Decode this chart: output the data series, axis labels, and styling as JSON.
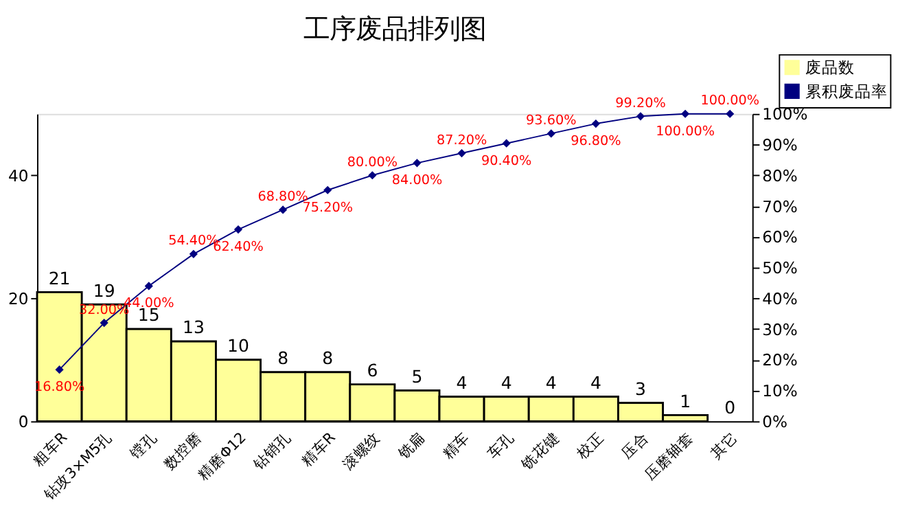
{
  "chart_data": {
    "type": "bar",
    "title": "工序废品排列图",
    "categories": [
      "粗车R",
      "钻攻3×M5孔",
      "镗孔",
      "数控磨",
      "精磨Φ12",
      "钻销孔",
      "精车R",
      "滚螺纹",
      "铣扁",
      "精车",
      "车孔",
      "铣花键",
      "校正",
      "压合",
      "压磨轴套",
      "其它"
    ],
    "series": [
      {
        "name": "废品数",
        "type": "bar",
        "color": "#ffff99",
        "values": [
          21,
          19,
          15,
          13,
          10,
          8,
          8,
          6,
          5,
          4,
          4,
          4,
          4,
          3,
          1,
          0
        ],
        "value_labels": [
          "21",
          "19",
          "15",
          "13",
          "10",
          "8",
          "8",
          "6",
          "5",
          "4",
          "4",
          "4",
          "4",
          "3",
          "1",
          "0"
        ]
      },
      {
        "name": "累积废品率",
        "type": "line",
        "axis": "y2",
        "color": "#000080",
        "marker": "diamond",
        "values": [
          16.8,
          32,
          44,
          54.4,
          62.4,
          68.8,
          75.2,
          80,
          84,
          87.2,
          90.4,
          93.6,
          96.8,
          99.2,
          100,
          100
        ],
        "value_labels": [
          "16.80%",
          "32.00%",
          "44.00%",
          "54.40%",
          "62.40%",
          "68.80%",
          "75.20%",
          "80.00%",
          "84.00%",
          "87.20%",
          "90.40%",
          "93.60%",
          "96.80%",
          "99.20%",
          "100.00%",
          "100.00%"
        ]
      }
    ],
    "ylim": [
      0,
      50
    ],
    "yticks": [
      0,
      20,
      40
    ],
    "y2lim": [
      0,
      100
    ],
    "y2ticks": [
      {
        "value": 0,
        "label": "0%"
      },
      {
        "value": 10,
        "label": "10%"
      },
      {
        "value": 20,
        "label": "20%"
      },
      {
        "value": 30,
        "label": "30%"
      },
      {
        "value": 40,
        "label": "40%"
      },
      {
        "value": 50,
        "label": "50%"
      },
      {
        "value": 60,
        "label": "60%"
      },
      {
        "value": 70,
        "label": "70%"
      },
      {
        "value": 80,
        "label": "80%"
      },
      {
        "value": 90,
        "label": "90%"
      },
      {
        "value": 100,
        "label": "100%"
      }
    ],
    "legend": "top right",
    "grid": false
  }
}
